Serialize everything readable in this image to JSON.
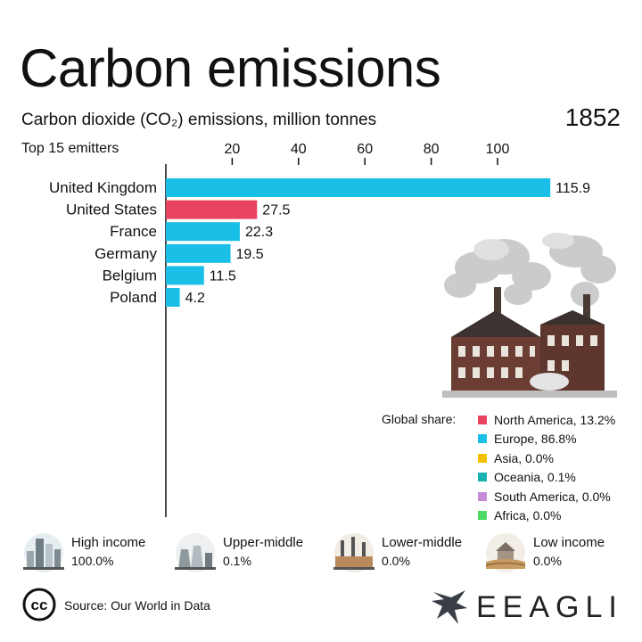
{
  "header": {
    "title": "Carbon emissions",
    "subtitle": "Carbon dioxide (CO₂) emissions, million tonnes",
    "year": "1852",
    "top_label": "Top 15 emitters"
  },
  "chart_data": {
    "type": "bar",
    "orientation": "horizontal",
    "title": "Carbon emissions",
    "subtitle": "Carbon dioxide (CO₂) emissions, million tonnes",
    "categories": [
      "United Kingdom",
      "United States",
      "France",
      "Germany",
      "Belgium",
      "Poland"
    ],
    "values": [
      115.9,
      27.5,
      22.3,
      19.5,
      11.5,
      4.2
    ],
    "value_labels": [
      "115.9",
      "27.5",
      "22.3",
      "19.5",
      "11.5",
      "4.2"
    ],
    "bar_colors": [
      "#19bfe6",
      "#e8445f",
      "#19bfe6",
      "#19bfe6",
      "#19bfe6",
      "#19bfe6"
    ],
    "x_ticks": [
      20,
      40,
      60,
      80,
      100
    ],
    "xlim": [
      0,
      120
    ],
    "grid": false
  },
  "global_share": {
    "label": "Global share:",
    "items": [
      {
        "name": "North America, 13.2%",
        "color": "#e8445f"
      },
      {
        "name": "Europe, 86.8%",
        "color": "#19bfe6"
      },
      {
        "name": "Asia, 0.0%",
        "color": "#f2c200"
      },
      {
        "name": "Oceania, 0.1%",
        "color": "#18b2b2"
      },
      {
        "name": "South America, 0.0%",
        "color": "#c58ad8"
      },
      {
        "name": "Africa, 0.0%",
        "color": "#4cd964"
      }
    ]
  },
  "income": [
    {
      "name": "High income",
      "value": "100.0%",
      "icon": "city-skyline-icon"
    },
    {
      "name": "Upper-middle",
      "value": "0.1%",
      "icon": "power-plant-icon"
    },
    {
      "name": "Lower-middle",
      "value": "0.0%",
      "icon": "factory-icon"
    },
    {
      "name": "Low income",
      "value": "0.0%",
      "icon": "farm-icon"
    }
  ],
  "footer": {
    "source": "Source: Our World in Data",
    "cc": "cc",
    "brand": "EEAGLI"
  }
}
